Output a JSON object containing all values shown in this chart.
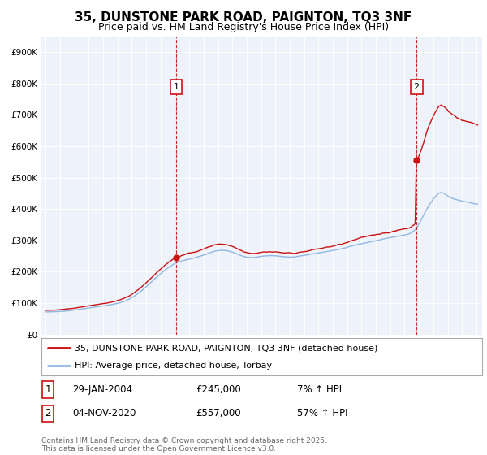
{
  "title": "35, DUNSTONE PARK ROAD, PAIGNTON, TQ3 3NF",
  "subtitle": "Price paid vs. HM Land Registry's House Price Index (HPI)",
  "ylim": [
    0,
    950000
  ],
  "yticks": [
    0,
    100000,
    200000,
    300000,
    400000,
    500000,
    600000,
    700000,
    800000,
    900000
  ],
  "ytick_labels": [
    "£0",
    "£100K",
    "£200K",
    "£300K",
    "£400K",
    "£500K",
    "£600K",
    "£700K",
    "£800K",
    "£900K"
  ],
  "background_color": "#ffffff",
  "plot_bg_color": "#eef2fb",
  "grid_color": "#ffffff",
  "hpi_line_color": "#90b8e0",
  "price_line_color": "#cc1111",
  "sale1_year": 2004.08,
  "sale1_price": 245000,
  "sale2_year": 2020.83,
  "sale2_price": 557000,
  "legend_line1": "35, DUNSTONE PARK ROAD, PAIGNTON, TQ3 3NF (detached house)",
  "legend_line2": "HPI: Average price, detached house, Torbay",
  "footer": "Contains HM Land Registry data © Crown copyright and database right 2025.\nThis data is licensed under the Open Government Licence v3.0.",
  "title_fontsize": 11,
  "subtitle_fontsize": 9,
  "tick_fontsize": 7.5,
  "legend_fontsize": 8
}
